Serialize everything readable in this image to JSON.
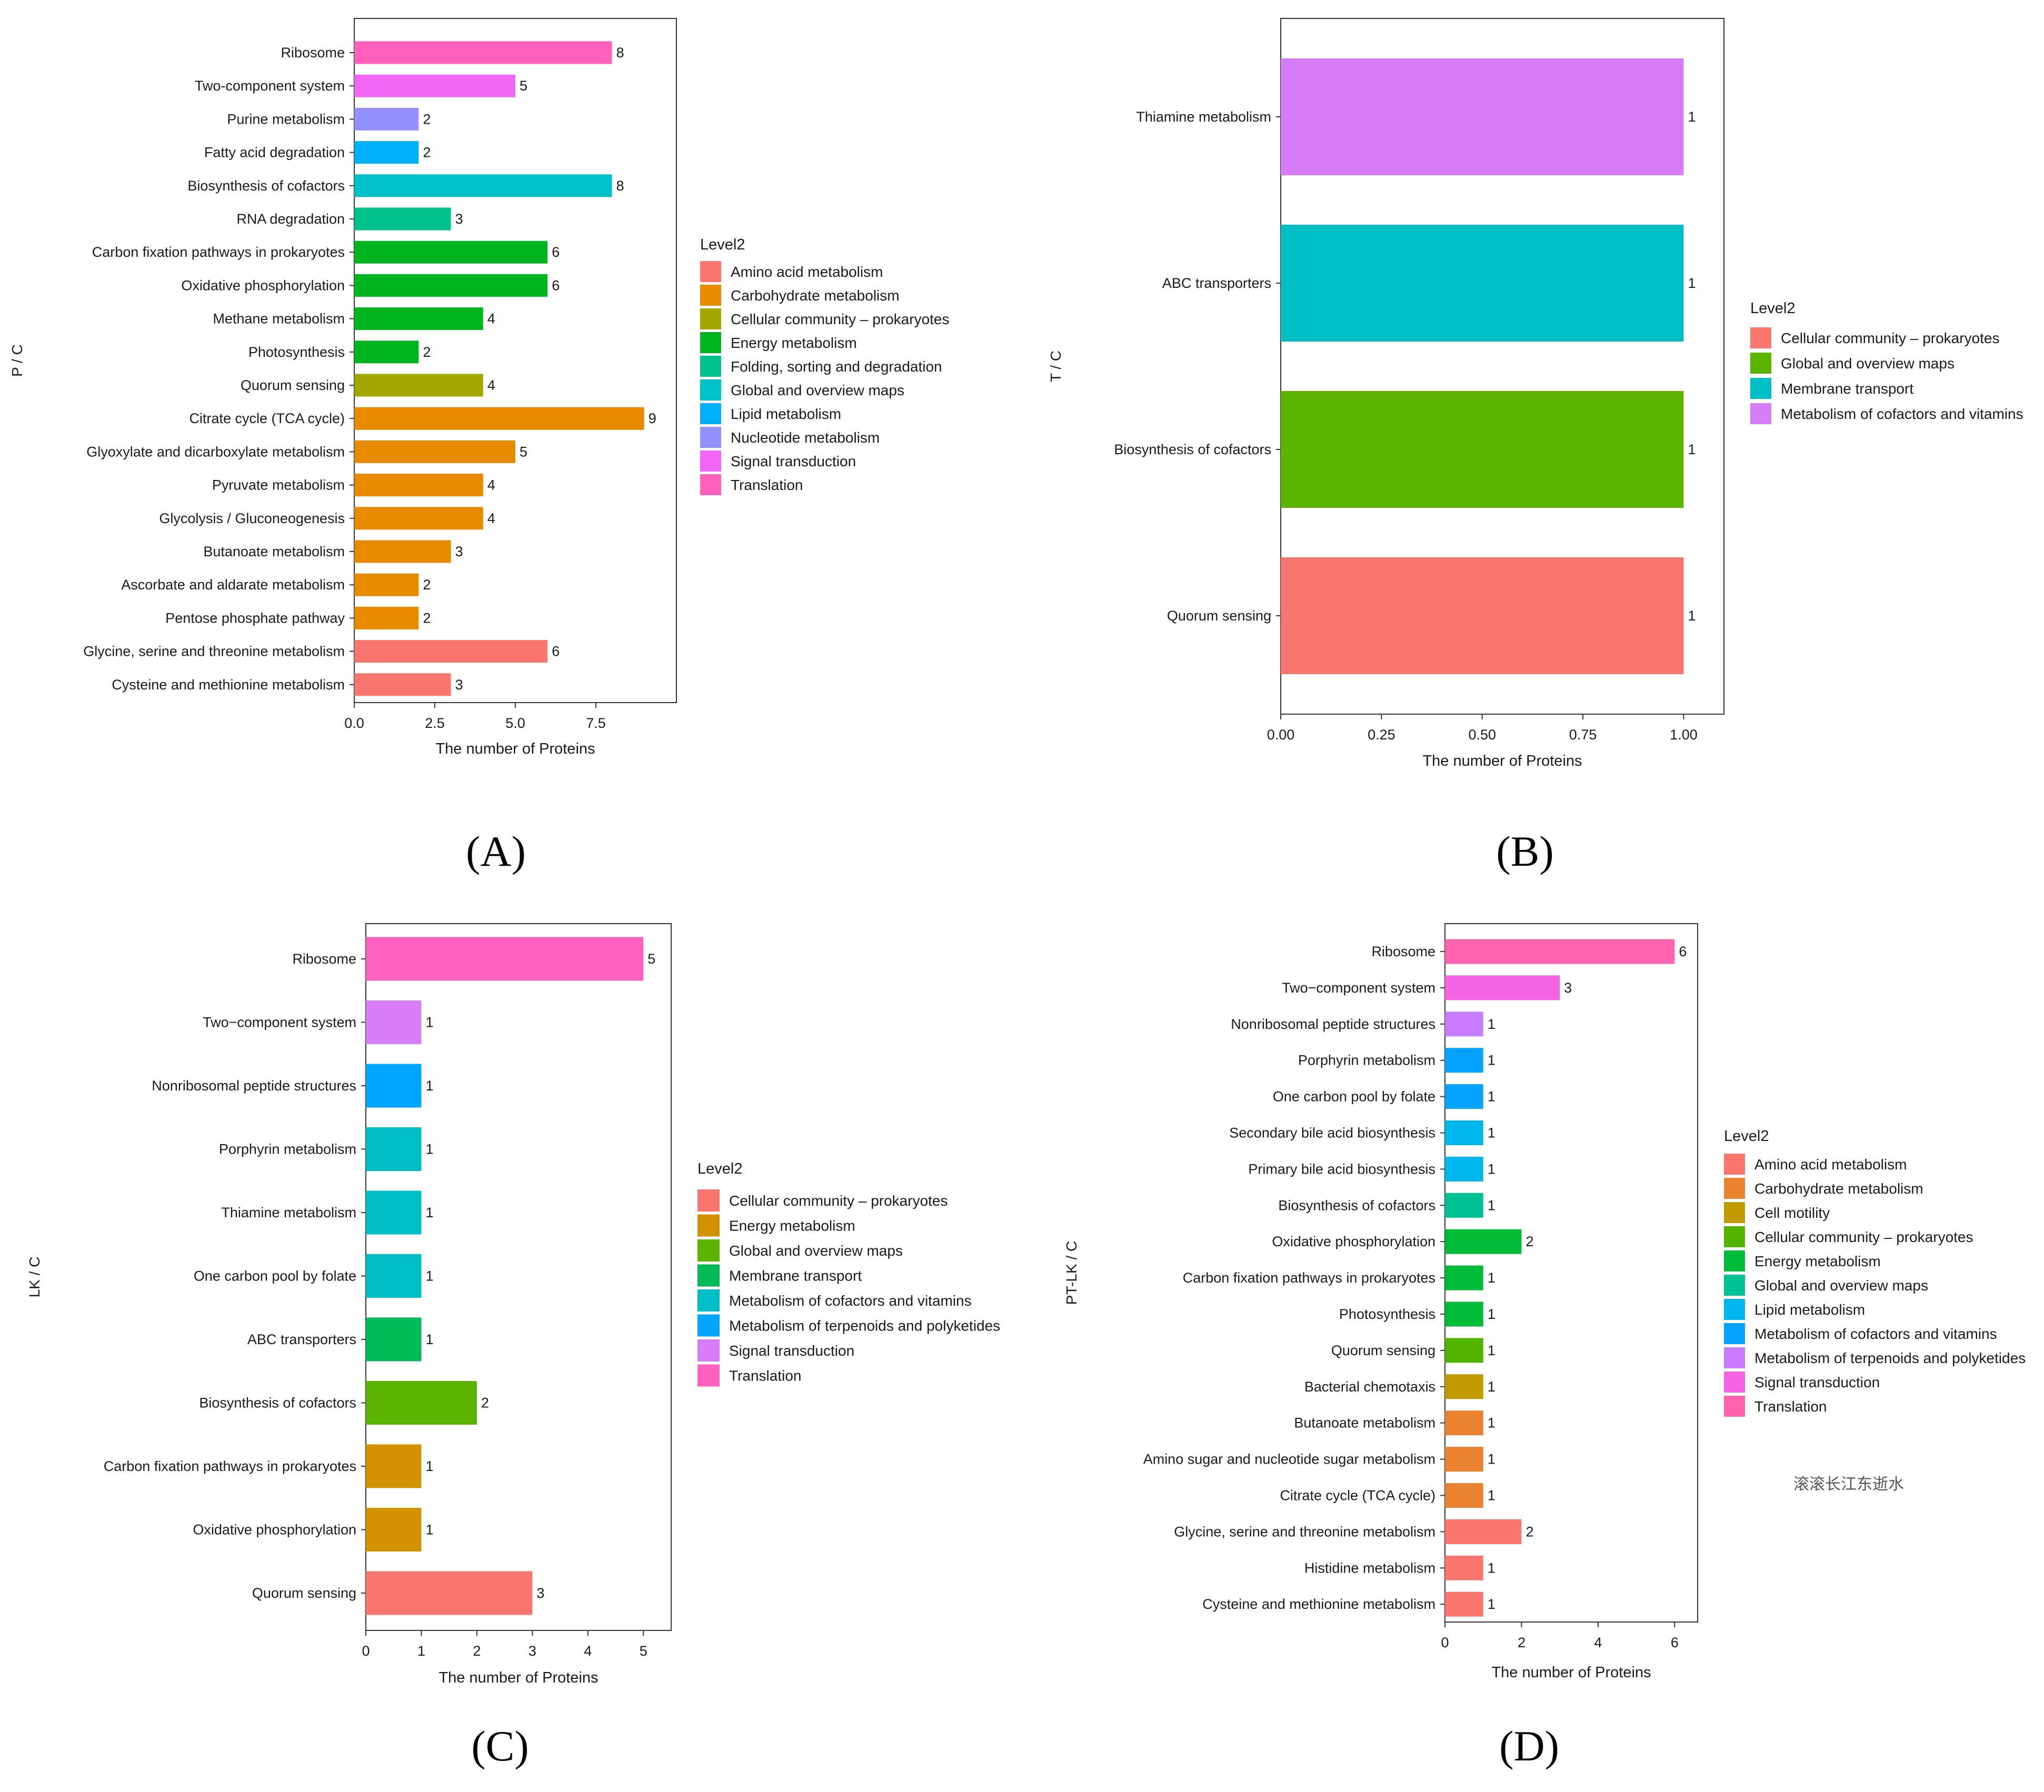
{
  "chart_data": [
    {
      "id": "A",
      "type": "bar",
      "orientation": "horizontal",
      "panel_label": "(A)",
      "ylabel": "P / C",
      "xlabel": "The number of Proteins",
      "xlim": [
        0,
        10
      ],
      "xticks": [
        "0.0",
        "2.5",
        "5.0",
        "7.5"
      ],
      "xtick_values": [
        0,
        2.5,
        5,
        7.5
      ],
      "legend_title": "Level2",
      "legend": [
        {
          "name": "Amino acid metabolism",
          "color": "#F8766D"
        },
        {
          "name": "Carbohydrate metabolism",
          "color": "#E88A00"
        },
        {
          "name": "Cellular community – prokaryotes",
          "color": "#A3A500"
        },
        {
          "name": "Energy metabolism",
          "color": "#00B520"
        },
        {
          "name": "Folding, sorting and degradation",
          "color": "#00C08B"
        },
        {
          "name": "Global and overview maps",
          "color": "#00C2C6"
        },
        {
          "name": "Lipid metabolism",
          "color": "#00B0F6"
        },
        {
          "name": "Nucleotide metabolism",
          "color": "#9590FF"
        },
        {
          "name": "Signal transduction",
          "color": "#F066F5"
        },
        {
          "name": "Translation",
          "color": "#FF62BC"
        }
      ],
      "bars": [
        {
          "label": "Ribosome",
          "value": 8,
          "group": 9
        },
        {
          "label": "Two-component system",
          "value": 5,
          "group": 8
        },
        {
          "label": "Purine metabolism",
          "value": 2,
          "group": 7
        },
        {
          "label": "Fatty acid degradation",
          "value": 2,
          "group": 6
        },
        {
          "label": "Biosynthesis of cofactors",
          "value": 8,
          "group": 5
        },
        {
          "label": "RNA degradation",
          "value": 3,
          "group": 4
        },
        {
          "label": "Carbon fixation pathways in prokaryotes",
          "value": 6,
          "group": 3
        },
        {
          "label": "Oxidative phosphorylation",
          "value": 6,
          "group": 3
        },
        {
          "label": "Methane metabolism",
          "value": 4,
          "group": 3
        },
        {
          "label": "Photosynthesis",
          "value": 2,
          "group": 3
        },
        {
          "label": "Quorum sensing",
          "value": 4,
          "group": 2
        },
        {
          "label": "Citrate cycle (TCA cycle)",
          "value": 9,
          "group": 1
        },
        {
          "label": "Glyoxylate and dicarboxylate metabolism",
          "value": 5,
          "group": 1
        },
        {
          "label": "Pyruvate metabolism",
          "value": 4,
          "group": 1
        },
        {
          "label": "Glycolysis / Gluconeogenesis",
          "value": 4,
          "group": 1
        },
        {
          "label": "Butanoate metabolism",
          "value": 3,
          "group": 1
        },
        {
          "label": "Ascorbate and aldarate metabolism",
          "value": 2,
          "group": 1
        },
        {
          "label": "Pentose phosphate pathway",
          "value": 2,
          "group": 1
        },
        {
          "label": "Glycine, serine and threonine metabolism",
          "value": 6,
          "group": 0
        },
        {
          "label": "Cysteine and methionine metabolism",
          "value": 3,
          "group": 0
        }
      ]
    },
    {
      "id": "B",
      "type": "bar",
      "orientation": "horizontal",
      "panel_label": "(B)",
      "ylabel": "T / C",
      "xlabel": "The number of Proteins",
      "xlim": [
        0,
        1.1
      ],
      "xticks": [
        "0.00",
        "0.25",
        "0.50",
        "0.75",
        "1.00"
      ],
      "xtick_values": [
        0,
        0.25,
        0.5,
        0.75,
        1.0
      ],
      "legend_title": "Level2",
      "legend": [
        {
          "name": "Cellular community – prokaryotes",
          "color": "#F8766D"
        },
        {
          "name": "Global and overview maps",
          "color": "#5BB300"
        },
        {
          "name": "Membrane transport",
          "color": "#00BFC4"
        },
        {
          "name": "Metabolism of cofactors and vitamins",
          "color": "#D77CF7"
        }
      ],
      "bars": [
        {
          "label": "Thiamine metabolism",
          "value": 1,
          "group": 3
        },
        {
          "label": "ABC transporters",
          "value": 1,
          "group": 2
        },
        {
          "label": "Biosynthesis of cofactors",
          "value": 1,
          "group": 1
        },
        {
          "label": "Quorum sensing",
          "value": 1,
          "group": 0
        }
      ]
    },
    {
      "id": "C",
      "type": "bar",
      "orientation": "horizontal",
      "panel_label": "(C)",
      "ylabel": "LK / C",
      "xlabel": "The number of Proteins",
      "xlim": [
        0,
        5.5
      ],
      "xticks": [
        "0",
        "1",
        "2",
        "3",
        "4",
        "5"
      ],
      "xtick_values": [
        0,
        1,
        2,
        3,
        4,
        5
      ],
      "legend_title": "Level2",
      "legend": [
        {
          "name": "Cellular community – prokaryotes",
          "color": "#F8766D"
        },
        {
          "name": "Energy metabolism",
          "color": "#D39200"
        },
        {
          "name": "Global and overview maps",
          "color": "#5BB300"
        },
        {
          "name": "Membrane transport",
          "color": "#00BA5A"
        },
        {
          "name": "Metabolism of cofactors and vitamins",
          "color": "#00BFC4"
        },
        {
          "name": "Metabolism of terpenoids and polyketides",
          "color": "#00A5FF"
        },
        {
          "name": "Signal transduction",
          "color": "#D77CF7"
        },
        {
          "name": "Translation",
          "color": "#FF61C3"
        }
      ],
      "bars": [
        {
          "label": "Ribosome",
          "value": 5,
          "group": 7
        },
        {
          "label": "Two−component system",
          "value": 1,
          "group": 6
        },
        {
          "label": "Nonribosomal peptide structures",
          "value": 1,
          "group": 5
        },
        {
          "label": "Porphyrin metabolism",
          "value": 1,
          "group": 4
        },
        {
          "label": "Thiamine metabolism",
          "value": 1,
          "group": 4
        },
        {
          "label": "One carbon pool by folate",
          "value": 1,
          "group": 4
        },
        {
          "label": "ABC transporters",
          "value": 1,
          "group": 3
        },
        {
          "label": "Biosynthesis of cofactors",
          "value": 2,
          "group": 2
        },
        {
          "label": "Carbon fixation pathways in prokaryotes",
          "value": 1,
          "group": 1
        },
        {
          "label": "Oxidative phosphorylation",
          "value": 1,
          "group": 1
        },
        {
          "label": "Quorum sensing",
          "value": 3,
          "group": 0
        }
      ]
    },
    {
      "id": "D",
      "type": "bar",
      "orientation": "horizontal",
      "panel_label": "(D)",
      "ylabel": "PT-LK / C",
      "xlabel": "The number of Proteins",
      "xlim": [
        0,
        6.6
      ],
      "xticks": [
        "0",
        "2",
        "4",
        "6"
      ],
      "xtick_values": [
        0,
        2,
        4,
        6
      ],
      "legend_title": "Level2",
      "legend": [
        {
          "name": "Amino acid metabolism",
          "color": "#F8766D"
        },
        {
          "name": "Carbohydrate metabolism",
          "color": "#EA8331"
        },
        {
          "name": "Cell motility",
          "color": "#C09B00"
        },
        {
          "name": "Cellular community – prokaryotes",
          "color": "#53B400"
        },
        {
          "name": "Energy metabolism",
          "color": "#00BA38"
        },
        {
          "name": "Global and overview maps",
          "color": "#00C094"
        },
        {
          "name": "Lipid metabolism",
          "color": "#00B6EB"
        },
        {
          "name": "Metabolism of cofactors and vitamins",
          "color": "#06A4FF"
        },
        {
          "name": "Metabolism of terpenoids and polyketides",
          "color": "#C77CFF"
        },
        {
          "name": "Signal transduction",
          "color": "#F564E3"
        },
        {
          "name": "Translation",
          "color": "#FF64B0"
        }
      ],
      "bars": [
        {
          "label": "Ribosome",
          "value": 6,
          "group": 10
        },
        {
          "label": "Two−component system",
          "value": 3,
          "group": 9
        },
        {
          "label": "Nonribosomal peptide structures",
          "value": 1,
          "group": 8
        },
        {
          "label": "Porphyrin metabolism",
          "value": 1,
          "group": 7
        },
        {
          "label": "One carbon pool by folate",
          "value": 1,
          "group": 7
        },
        {
          "label": "Secondary bile acid biosynthesis",
          "value": 1,
          "group": 6
        },
        {
          "label": "Primary bile acid biosynthesis",
          "value": 1,
          "group": 6
        },
        {
          "label": "Biosynthesis of cofactors",
          "value": 1,
          "group": 5
        },
        {
          "label": "Oxidative phosphorylation",
          "value": 2,
          "group": 4
        },
        {
          "label": "Carbon fixation pathways in prokaryotes",
          "value": 1,
          "group": 4
        },
        {
          "label": "Photosynthesis",
          "value": 1,
          "group": 4
        },
        {
          "label": "Quorum sensing",
          "value": 1,
          "group": 3
        },
        {
          "label": "Bacterial chemotaxis",
          "value": 1,
          "group": 2
        },
        {
          "label": "Butanoate metabolism",
          "value": 1,
          "group": 1
        },
        {
          "label": "Amino sugar and nucleotide sugar metabolism",
          "value": 1,
          "group": 1
        },
        {
          "label": "Citrate cycle (TCA cycle)",
          "value": 1,
          "group": 1
        },
        {
          "label": "Glycine, serine and threonine metabolism",
          "value": 2,
          "group": 0
        },
        {
          "label": "Histidine metabolism",
          "value": 1,
          "group": 0
        },
        {
          "label": "Cysteine and methionine metabolism",
          "value": 1,
          "group": 0
        }
      ],
      "watermark": "滚滚长江东逝水"
    }
  ]
}
